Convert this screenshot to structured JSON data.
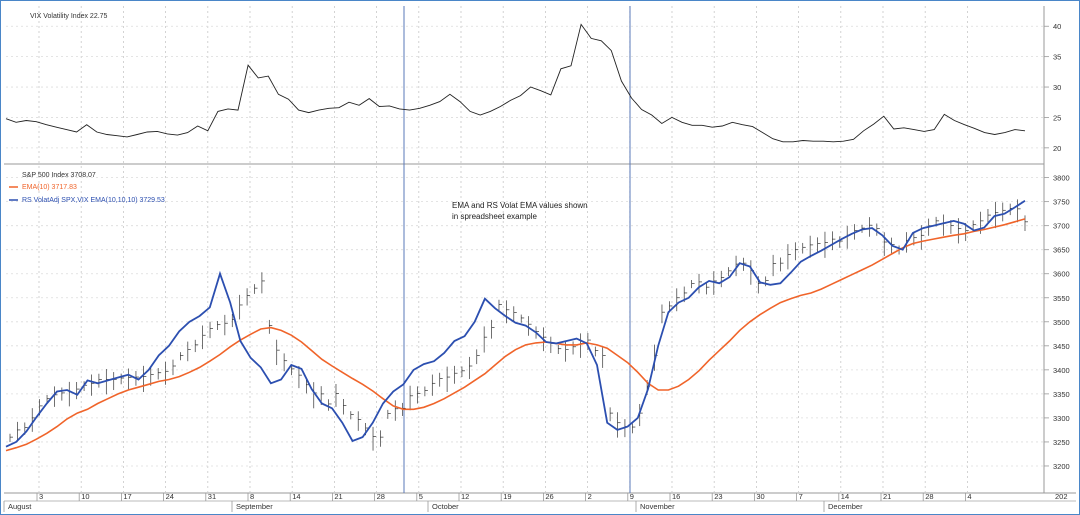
{
  "chart_data": [
    {
      "type": "line",
      "legend": [
        {
          "text": "VIX Volatility Index 22.75",
          "color": "#222222"
        }
      ],
      "ylim": [
        18,
        43
      ],
      "y_ticks": [
        "20",
        "25",
        "30",
        "35",
        "40"
      ],
      "series": [
        {
          "name": "VIX Volatility Index",
          "color": "#222222",
          "values": [
            24.8,
            24.2,
            24.5,
            24.3,
            23.8,
            23.4,
            23.0,
            22.6,
            23.8,
            22.6,
            22.2,
            22.0,
            21.8,
            22.2,
            22.6,
            22.7,
            22.3,
            22.1,
            22.5,
            23.6,
            22.8,
            26.0,
            26.4,
            26.2,
            33.6,
            31.5,
            31.8,
            28.8,
            28.0,
            26.2,
            25.8,
            26.2,
            26.5,
            26.6,
            27.5,
            27.0,
            28.1,
            26.8,
            26.9,
            26.4,
            26.2,
            26.5,
            27.0,
            27.6,
            28.8,
            27.6,
            26.0,
            25.4,
            26.0,
            26.8,
            27.8,
            28.6,
            30.0,
            29.4,
            28.7,
            33.0,
            33.5,
            40.3,
            38.0,
            37.6,
            36.0,
            31.0,
            28.2,
            26.3,
            25.4,
            24.0,
            25.0,
            24.2,
            23.7,
            23.7,
            23.4,
            23.6,
            24.2,
            23.8,
            23.5,
            22.5,
            21.5,
            21.0,
            21.0,
            21.2,
            21.1,
            21.1,
            21.0,
            21.1,
            21.4,
            22.8,
            23.9,
            25.2,
            23.1,
            23.3,
            23.0,
            22.7,
            23.0,
            25.5,
            24.5,
            23.8,
            23.2,
            22.5,
            22.2,
            22.5,
            23.0,
            22.8
          ]
        }
      ]
    },
    {
      "type": "line",
      "annotation": [
        "EMA and RS Volat EMA values shown",
        "in spreadsheet example"
      ],
      "legend": [
        {
          "text": "S&P 500 Index 3708.07",
          "color": "#222222"
        },
        {
          "text": "EMA(10) 3717.83",
          "color": "#f0642a"
        },
        {
          "text": "RS VolatAdj SPX,VIX EMA(10,10,10) 3729.53",
          "color": "#2c4fb0"
        }
      ],
      "ylim": [
        3150,
        3820
      ],
      "y_ticks": [
        "3200",
        "3250",
        "3300",
        "3350",
        "3400",
        "3450",
        "3500",
        "3550",
        "3600",
        "3650",
        "3700",
        "3750",
        "3800"
      ],
      "x_ticks": [
        "3",
        "10",
        "17",
        "24",
        "31",
        "8",
        "14",
        "21",
        "28",
        "5",
        "12",
        "19",
        "26",
        "2",
        "9",
        "16",
        "23",
        "30",
        "7",
        "14",
        "21",
        "28",
        "4"
      ],
      "months": [
        "August",
        "September",
        "October",
        "November",
        "December"
      ],
      "right_label": "202",
      "series": [
        {
          "name": "S&P 500 Index",
          "color": "#222222",
          "kind": "bars",
          "values": [
            3260,
            3275,
            3280,
            3300,
            3325,
            3340,
            3348,
            3352,
            3354,
            3360,
            3368,
            3372,
            3380,
            3380,
            3380,
            3383,
            3384,
            3385,
            3386,
            3390,
            3394,
            3397,
            3408,
            3430,
            3442,
            3452,
            3472,
            3486,
            3494,
            3497,
            3505,
            3535,
            3555,
            3570,
            3585,
            3492,
            3441,
            3419,
            3402,
            3389,
            3369,
            3352,
            3350,
            3329,
            3351,
            3326,
            3307,
            3297,
            3279,
            3261,
            3260,
            3309,
            3319,
            3320,
            3346,
            3351,
            3357,
            3372,
            3382,
            3385,
            3393,
            3398,
            3408,
            3430,
            3468,
            3488,
            3536,
            3525,
            3519,
            3508,
            3495,
            3480,
            3468,
            3455,
            3444,
            3442,
            3448,
            3455,
            3462,
            3440,
            3430,
            3310,
            3290,
            3282,
            3281,
            3310,
            3366,
            3430,
            3520,
            3533,
            3550,
            3560,
            3580,
            3583,
            3572,
            3585,
            3592,
            3606,
            3620,
            3622,
            3607,
            3580,
            3586,
            3621,
            3622,
            3640,
            3650,
            3655,
            3660,
            3663,
            3665,
            3672,
            3668,
            3680,
            3690,
            3695,
            3701,
            3694,
            3666,
            3661,
            3651,
            3669,
            3675,
            3680,
            3700,
            3710,
            3705,
            3700,
            3694,
            3690,
            3702,
            3710,
            3722,
            3727,
            3732,
            3736,
            3735,
            3708
          ]
        },
        {
          "name": "EMA(10)",
          "color": "#f0642a",
          "values": [
            3232,
            3238,
            3245,
            3256,
            3268,
            3282,
            3298,
            3310,
            3318,
            3330,
            3340,
            3350,
            3358,
            3364,
            3370,
            3376,
            3380,
            3386,
            3395,
            3405,
            3418,
            3432,
            3448,
            3462,
            3474,
            3485,
            3488,
            3482,
            3472,
            3458,
            3440,
            3422,
            3408,
            3395,
            3382,
            3370,
            3356,
            3340,
            3325,
            3318,
            3318,
            3322,
            3330,
            3340,
            3352,
            3364,
            3378,
            3392,
            3410,
            3428,
            3442,
            3452,
            3456,
            3458,
            3455,
            3452,
            3452,
            3456,
            3452,
            3445,
            3430,
            3415,
            3395,
            3372,
            3358,
            3358,
            3366,
            3380,
            3398,
            3420,
            3440,
            3460,
            3482,
            3500,
            3515,
            3528,
            3540,
            3548,
            3555,
            3560,
            3568,
            3578,
            3588,
            3598,
            3608,
            3618,
            3630,
            3642,
            3654,
            3663,
            3668,
            3672,
            3676,
            3680,
            3683,
            3688,
            3692,
            3697,
            3702,
            3708,
            3714
          ]
        },
        {
          "name": "RS VolatAdj SPX,VIX EMA(10,10,10)",
          "color": "#2c4fb0",
          "values": [
            3240,
            3250,
            3272,
            3302,
            3330,
            3355,
            3358,
            3348,
            3378,
            3372,
            3378,
            3384,
            3390,
            3380,
            3400,
            3430,
            3450,
            3480,
            3500,
            3512,
            3530,
            3600,
            3540,
            3460,
            3425,
            3405,
            3372,
            3380,
            3410,
            3402,
            3360,
            3330,
            3320,
            3290,
            3252,
            3260,
            3290,
            3330,
            3355,
            3370,
            3400,
            3412,
            3418,
            3435,
            3460,
            3470,
            3500,
            3548,
            3528,
            3512,
            3498,
            3492,
            3478,
            3458,
            3455,
            3460,
            3465,
            3455,
            3410,
            3290,
            3275,
            3282,
            3300,
            3360,
            3450,
            3520,
            3540,
            3550,
            3572,
            3585,
            3580,
            3593,
            3622,
            3615,
            3582,
            3577,
            3580,
            3602,
            3625,
            3637,
            3648,
            3660,
            3672,
            3683,
            3692,
            3695,
            3680,
            3658,
            3650,
            3685,
            3695,
            3700,
            3705,
            3710,
            3704,
            3690,
            3696,
            3720,
            3725,
            3738,
            3752
          ]
        }
      ]
    }
  ]
}
